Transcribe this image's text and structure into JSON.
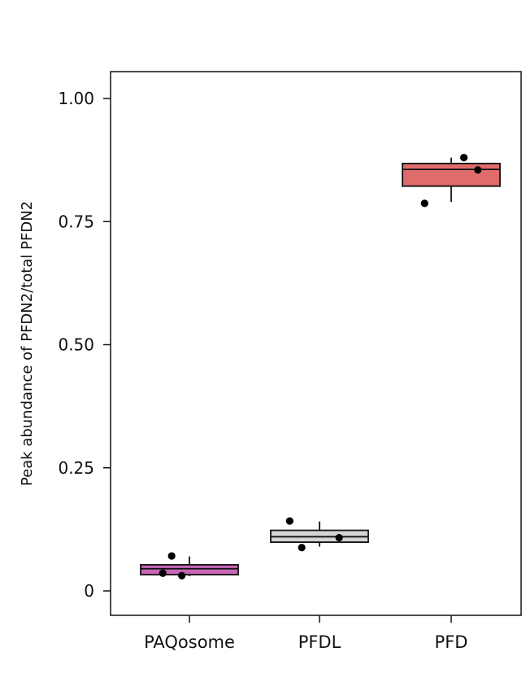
{
  "chart_data": {
    "type": "box",
    "title": "",
    "xlabel": "",
    "ylabel": "Peak abundance of PFDN2/total PFDN2",
    "ylim": [
      -0.05,
      1.05
    ],
    "yticks": [
      {
        "value": 0,
        "label": "0"
      },
      {
        "value": 0.25,
        "label": "0.25"
      },
      {
        "value": 0.5,
        "label": "0.50"
      },
      {
        "value": 0.75,
        "label": "0.75"
      },
      {
        "value": 1.0,
        "label": "1.00"
      }
    ],
    "categories": [
      "PAQosome",
      "PFDL",
      "PFD"
    ],
    "boxes": [
      {
        "name": "PAQosome",
        "color": "#c765b5",
        "whisker_low": 0.03,
        "q1": 0.033,
        "median": 0.045,
        "q3": 0.053,
        "whisker_high": 0.07,
        "points": [
          {
            "x_offset": -0.42,
            "y": 0.036
          },
          {
            "x_offset": -0.28,
            "y": 0.071
          },
          {
            "x_offset": -0.12,
            "y": 0.031
          }
        ]
      },
      {
        "name": "PFDL",
        "color": "#d4d4d4",
        "whisker_low": 0.09,
        "q1": 0.099,
        "median": 0.11,
        "q3": 0.123,
        "whisker_high": 0.141,
        "points": [
          {
            "x_offset": -0.47,
            "y": 0.142
          },
          {
            "x_offset": -0.28,
            "y": 0.088
          },
          {
            "x_offset": 0.31,
            "y": 0.108
          }
        ]
      },
      {
        "name": "PFD",
        "color": "#e06b6b",
        "whisker_low": 0.79,
        "q1": 0.822,
        "median": 0.856,
        "q3": 0.868,
        "whisker_high": 0.88,
        "points": [
          {
            "x_offset": -0.42,
            "y": 0.787
          },
          {
            "x_offset": 0.2,
            "y": 0.88
          },
          {
            "x_offset": 0.42,
            "y": 0.855
          }
        ]
      }
    ]
  }
}
